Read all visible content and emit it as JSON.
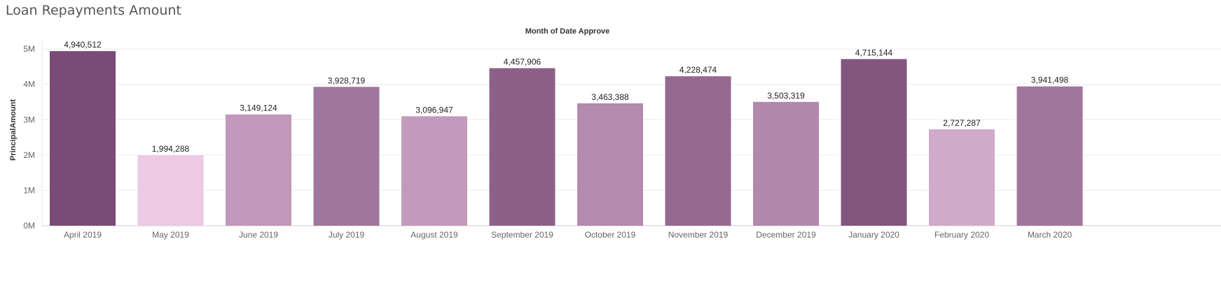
{
  "title": "Loan Repayments Amount",
  "chart_data": {
    "type": "bar",
    "title": "Loan Repayments Amount",
    "column_header": "Month of Date Approve",
    "xlabel": "",
    "ylabel": "PrincipalAmount",
    "categories": [
      "April 2019",
      "May 2019",
      "June 2019",
      "July 2019",
      "August 2019",
      "September 2019",
      "October 2019",
      "November 2019",
      "December 2019",
      "January 2020",
      "February 2020",
      "March 2020"
    ],
    "values": [
      4940512,
      1994288,
      3149124,
      3928719,
      3096947,
      4457906,
      3463388,
      4228474,
      3503319,
      4715144,
      2727287,
      3941498
    ],
    "value_labels": [
      "4,940,512",
      "1,994,288",
      "3,149,124",
      "3,928,719",
      "3,096,947",
      "4,457,906",
      "3,463,388",
      "4,228,474",
      "3,503,319",
      "4,715,144",
      "2,727,287",
      "3,941,498"
    ],
    "yticks": [
      0,
      1000000,
      2000000,
      3000000,
      4000000,
      5000000
    ],
    "ytick_labels": [
      "0M",
      "1M",
      "2M",
      "3M",
      "4M",
      "5M"
    ],
    "ylim": [
      0,
      5200000
    ],
    "grid": true,
    "legend": "none",
    "color_scale": {
      "low": "#EDC9E4",
      "high": "#7A4B77"
    }
  }
}
